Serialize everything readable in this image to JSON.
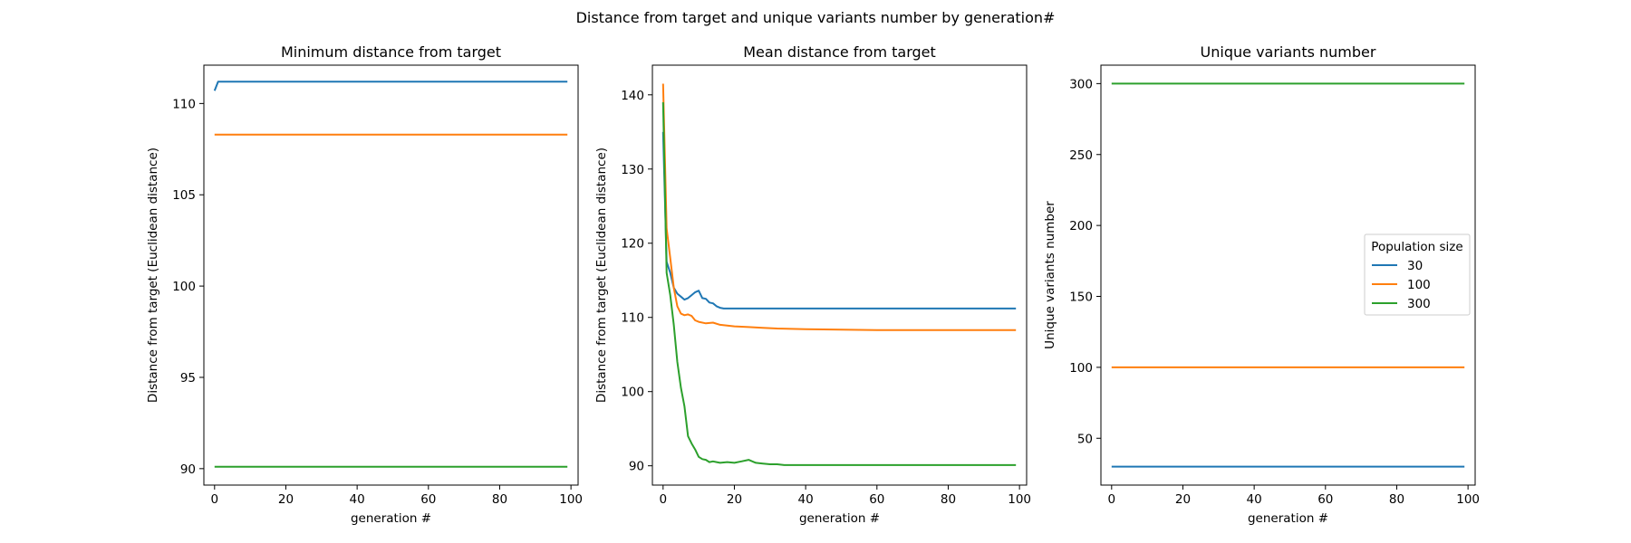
{
  "figure": {
    "title": "Distance from target and unique variants number by generation#"
  },
  "legend": {
    "title": "Population size",
    "location": "center-right of third panel",
    "entries": [
      {
        "label": "30",
        "color": "#1f77b4"
      },
      {
        "label": "100",
        "color": "#ff7f0e"
      },
      {
        "label": "300",
        "color": "#2ca02c"
      }
    ]
  },
  "chart_data": [
    {
      "type": "line",
      "title": "Minimum distance from target",
      "xlabel": "generation #",
      "ylabel": "Distance from target (Euclidean distance)",
      "xlim": [
        -3,
        102
      ],
      "ylim": [
        89.1,
        112.1
      ],
      "xticks": [
        0,
        20,
        40,
        60,
        80,
        100
      ],
      "yticks": [
        90,
        95,
        100,
        105,
        110
      ],
      "grid": false,
      "series": [
        {
          "name": "30",
          "color": "#1f77b4",
          "x": [
            0,
            1,
            2,
            5,
            10,
            20,
            40,
            60,
            80,
            99
          ],
          "y": [
            110.7,
            111.2,
            111.2,
            111.2,
            111.2,
            111.2,
            111.2,
            111.2,
            111.2,
            111.2
          ]
        },
        {
          "name": "100",
          "color": "#ff7f0e",
          "x": [
            0,
            20,
            40,
            60,
            80,
            99
          ],
          "y": [
            108.3,
            108.3,
            108.3,
            108.3,
            108.3,
            108.3
          ]
        },
        {
          "name": "300",
          "color": "#2ca02c",
          "x": [
            0,
            20,
            40,
            60,
            80,
            99
          ],
          "y": [
            90.1,
            90.1,
            90.1,
            90.1,
            90.1,
            90.1
          ]
        }
      ]
    },
    {
      "type": "line",
      "title": "Mean distance from target",
      "xlabel": "generation #",
      "ylabel": "Distance from target (Euclidean distance)",
      "xlim": [
        -3,
        102
      ],
      "ylim": [
        87.4,
        144
      ],
      "xticks": [
        0,
        20,
        40,
        60,
        80,
        100
      ],
      "yticks": [
        90,
        100,
        110,
        120,
        130,
        140
      ],
      "grid": false,
      "series": [
        {
          "name": "30",
          "color": "#1f77b4",
          "x": [
            0,
            1,
            2,
            3,
            4,
            5,
            6,
            7,
            8,
            9,
            10,
            11,
            12,
            13,
            14,
            15,
            16,
            17,
            18,
            20,
            25,
            30,
            40,
            60,
            80,
            99
          ],
          "y": [
            135,
            117.5,
            116,
            114,
            113.2,
            112.8,
            112.4,
            112.6,
            113,
            113.4,
            113.6,
            112.6,
            112.5,
            112.0,
            111.9,
            111.5,
            111.3,
            111.2,
            111.2,
            111.2,
            111.2,
            111.2,
            111.2,
            111.2,
            111.2,
            111.2
          ]
        },
        {
          "name": "100",
          "color": "#ff7f0e",
          "x": [
            0,
            1,
            2,
            3,
            4,
            5,
            6,
            7,
            8,
            9,
            10,
            12,
            14,
            16,
            18,
            20,
            24,
            28,
            32,
            36,
            40,
            50,
            60,
            80,
            99
          ],
          "y": [
            141.5,
            122,
            118,
            114,
            111.5,
            110.5,
            110.3,
            110.4,
            110.2,
            109.6,
            109.4,
            109.2,
            109.3,
            109.0,
            108.9,
            108.8,
            108.7,
            108.6,
            108.5,
            108.45,
            108.4,
            108.35,
            108.3,
            108.3,
            108.3
          ]
        },
        {
          "name": "300",
          "color": "#2ca02c",
          "x": [
            0,
            1,
            2,
            3,
            4,
            5,
            6,
            7,
            8,
            9,
            10,
            11,
            12,
            13,
            14,
            15,
            16,
            18,
            20,
            22,
            24,
            26,
            28,
            30,
            32,
            34,
            40,
            60,
            80,
            99
          ],
          "y": [
            139,
            116,
            113,
            109,
            104,
            100.5,
            98,
            94,
            93,
            92.2,
            91.2,
            90.9,
            90.8,
            90.5,
            90.6,
            90.5,
            90.4,
            90.5,
            90.4,
            90.6,
            90.8,
            90.4,
            90.3,
            90.2,
            90.2,
            90.1,
            90.1,
            90.1,
            90.1,
            90.1
          ]
        }
      ]
    },
    {
      "type": "line",
      "title": "Unique variants number",
      "xlabel": "generation #",
      "ylabel": "Unique variants number",
      "xlim": [
        -3,
        102
      ],
      "ylim": [
        17,
        313
      ],
      "xticks": [
        0,
        20,
        40,
        60,
        80,
        100
      ],
      "yticks": [
        50,
        100,
        150,
        200,
        250,
        300
      ],
      "grid": false,
      "series": [
        {
          "name": "30",
          "color": "#1f77b4",
          "x": [
            0,
            99
          ],
          "y": [
            30,
            30
          ]
        },
        {
          "name": "100",
          "color": "#ff7f0e",
          "x": [
            0,
            99
          ],
          "y": [
            100,
            100
          ]
        },
        {
          "name": "300",
          "color": "#2ca02c",
          "x": [
            0,
            99
          ],
          "y": [
            300,
            300
          ]
        }
      ]
    }
  ]
}
